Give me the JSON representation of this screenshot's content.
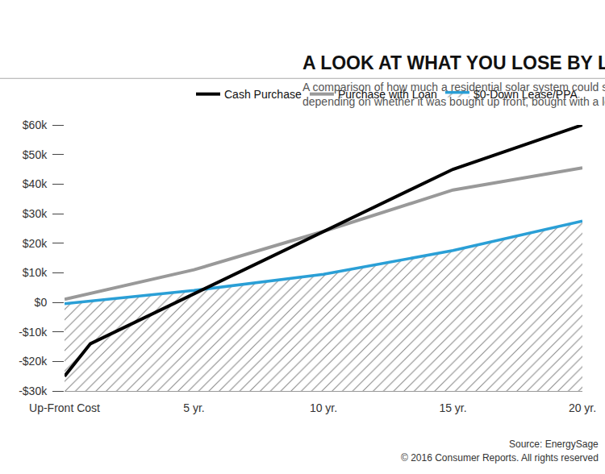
{
  "chart_data": {
    "type": "line",
    "title": "A LOOK AT WHAT YOU LOSE BY LEASING",
    "subtitle": "A comparison of how much a residential solar system could save a New Jersey homeowner, depending on whether it was bought up front, bought with a loan, or leased",
    "x": [
      0,
      5,
      10,
      15,
      20
    ],
    "xlim": [
      0,
      20
    ],
    "xticks": [
      {
        "value": 0,
        "label": "Up-Front Cost"
      },
      {
        "value": 5,
        "label": "5 yr."
      },
      {
        "value": 10,
        "label": "10 yr."
      },
      {
        "value": 15,
        "label": "15 yr."
      },
      {
        "value": 20,
        "label": "20 yr."
      }
    ],
    "ylim": [
      -30000,
      60000
    ],
    "yticks": [
      {
        "value": -30000,
        "label": "-$30k"
      },
      {
        "value": -20000,
        "label": "-$20k"
      },
      {
        "value": -10000,
        "label": "-$10k"
      },
      {
        "value": 0,
        "label": "$0"
      },
      {
        "value": 10000,
        "label": "$10k"
      },
      {
        "value": 20000,
        "label": "$20k"
      },
      {
        "value": 30000,
        "label": "$30k"
      },
      {
        "value": 40000,
        "label": "$40k"
      },
      {
        "value": 50000,
        "label": "$50k"
      },
      {
        "value": 60000,
        "label": "$60k"
      }
    ],
    "grid": false,
    "legend": "top right",
    "series": [
      {
        "name": "Cash Purchase",
        "color": "#000000",
        "x": [
          0,
          1,
          15,
          20
        ],
        "values": [
          -25000,
          -14000,
          45000,
          60000
        ]
      },
      {
        "name": "Purchase with Loan",
        "color": "#999999",
        "values": [
          1000,
          11000,
          24000,
          38000,
          45500
        ]
      },
      {
        "name": "$0-Down Lease/PPA",
        "color": "#2a9fd6",
        "values": [
          -500,
          4000,
          9500,
          17500,
          27500
        ],
        "marker": "hatched_area"
      }
    ],
    "annotations": [
      "Source: EnergySage",
      "© 2016 Consumer Reports. All rights reserved"
    ]
  }
}
